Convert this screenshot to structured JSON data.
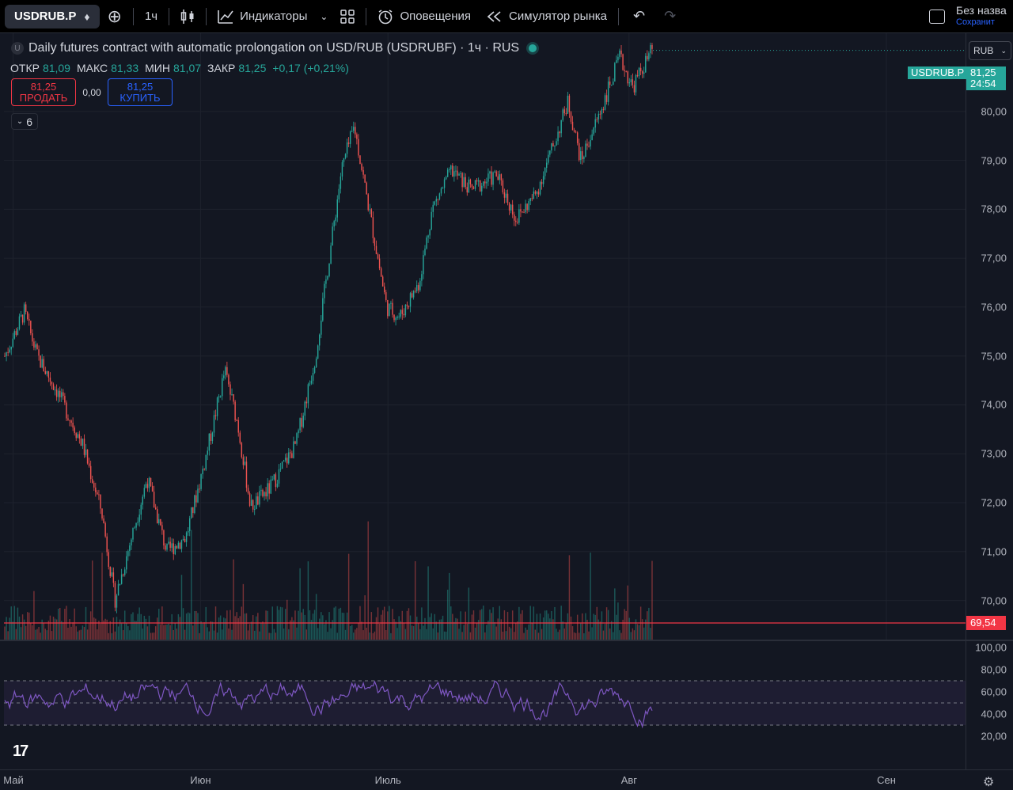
{
  "toolbar": {
    "symbol": "USDRUB.P",
    "interval": "1ч",
    "indicators_label": "Индикаторы",
    "alerts_label": "Оповещения",
    "replay_label": "Симулятор рынка",
    "layout_name": "Без назва",
    "layout_save": "Сохранит"
  },
  "legend": {
    "title": "Daily futures contract with automatic prolongation on USD/RUB (USDRUBF) · 1ч · RUS",
    "icon_letter": "U",
    "open_label": "ОТКР",
    "open": "81,09",
    "high_label": "МАКС",
    "high": "81,33",
    "low_label": "МИН",
    "low": "81,07",
    "close_label": "ЗАКР",
    "close": "81,25",
    "change": "+0,17 (+0,21%)"
  },
  "trade": {
    "sell_price": "81,25",
    "sell_label": "ПРОДАТЬ",
    "spread": "0,00",
    "buy_price": "81,25",
    "buy_label": "КУПИТЬ",
    "indicators_count": "6"
  },
  "price_axis": {
    "currency": "RUB",
    "last_symbol": "USDRUB.P",
    "last_price": "81,25",
    "countdown": "24:54",
    "marker_price": "69,54",
    "ticks": [
      "80,00",
      "79,00",
      "78,00",
      "77,00",
      "76,00",
      "75,00",
      "74,00",
      "73,00",
      "72,00",
      "71,00",
      "70,00"
    ],
    "rsi_ticks": [
      "100,00",
      "80,00",
      "60,00",
      "40,00",
      "20,00"
    ]
  },
  "time_axis": [
    "Май",
    "Июн",
    "Июль",
    "Авг",
    "Сен"
  ],
  "colors": {
    "up": "#26a69a",
    "down": "#ef5350",
    "rsi": "#7e57c2",
    "marker": "#f23645",
    "background": "#131722"
  },
  "chart_data": {
    "type": "candlestick",
    "interval": "1ч",
    "ylim": [
      69.2,
      81.6
    ],
    "x_ticks": [
      "Май",
      "Июн",
      "Июль",
      "Авг",
      "Сен"
    ],
    "close_path": [
      {
        "x": 0.0,
        "y": 75.0
      },
      {
        "x": 0.03,
        "y": 75.9
      },
      {
        "x": 0.05,
        "y": 75.0
      },
      {
        "x": 0.08,
        "y": 74.3
      },
      {
        "x": 0.12,
        "y": 73.2
      },
      {
        "x": 0.15,
        "y": 71.8
      },
      {
        "x": 0.17,
        "y": 70.0
      },
      {
        "x": 0.2,
        "y": 71.5
      },
      {
        "x": 0.22,
        "y": 72.5
      },
      {
        "x": 0.25,
        "y": 71.0
      },
      {
        "x": 0.28,
        "y": 71.3
      },
      {
        "x": 0.31,
        "y": 72.9
      },
      {
        "x": 0.34,
        "y": 74.7
      },
      {
        "x": 0.36,
        "y": 73.6
      },
      {
        "x": 0.38,
        "y": 71.9
      },
      {
        "x": 0.41,
        "y": 72.3
      },
      {
        "x": 0.45,
        "y": 73.2
      },
      {
        "x": 0.48,
        "y": 75.0
      },
      {
        "x": 0.52,
        "y": 78.8
      },
      {
        "x": 0.54,
        "y": 79.7
      },
      {
        "x": 0.56,
        "y": 78.2
      },
      {
        "x": 0.59,
        "y": 76.0
      },
      {
        "x": 0.61,
        "y": 75.8
      },
      {
        "x": 0.64,
        "y": 76.5
      },
      {
        "x": 0.66,
        "y": 78.0
      },
      {
        "x": 0.69,
        "y": 78.8
      },
      {
        "x": 0.72,
        "y": 78.4
      },
      {
        "x": 0.76,
        "y": 78.7
      },
      {
        "x": 0.79,
        "y": 77.8
      },
      {
        "x": 0.82,
        "y": 78.3
      },
      {
        "x": 0.85,
        "y": 79.4
      },
      {
        "x": 0.87,
        "y": 80.2
      },
      {
        "x": 0.89,
        "y": 79.0
      },
      {
        "x": 0.92,
        "y": 80.0
      },
      {
        "x": 0.95,
        "y": 81.1
      },
      {
        "x": 0.97,
        "y": 80.5
      },
      {
        "x": 1.0,
        "y": 81.25
      }
    ],
    "horizontal_line": 69.54,
    "rsi": {
      "ylim": [
        0,
        100
      ],
      "levels": [
        70,
        50,
        30
      ]
    }
  }
}
